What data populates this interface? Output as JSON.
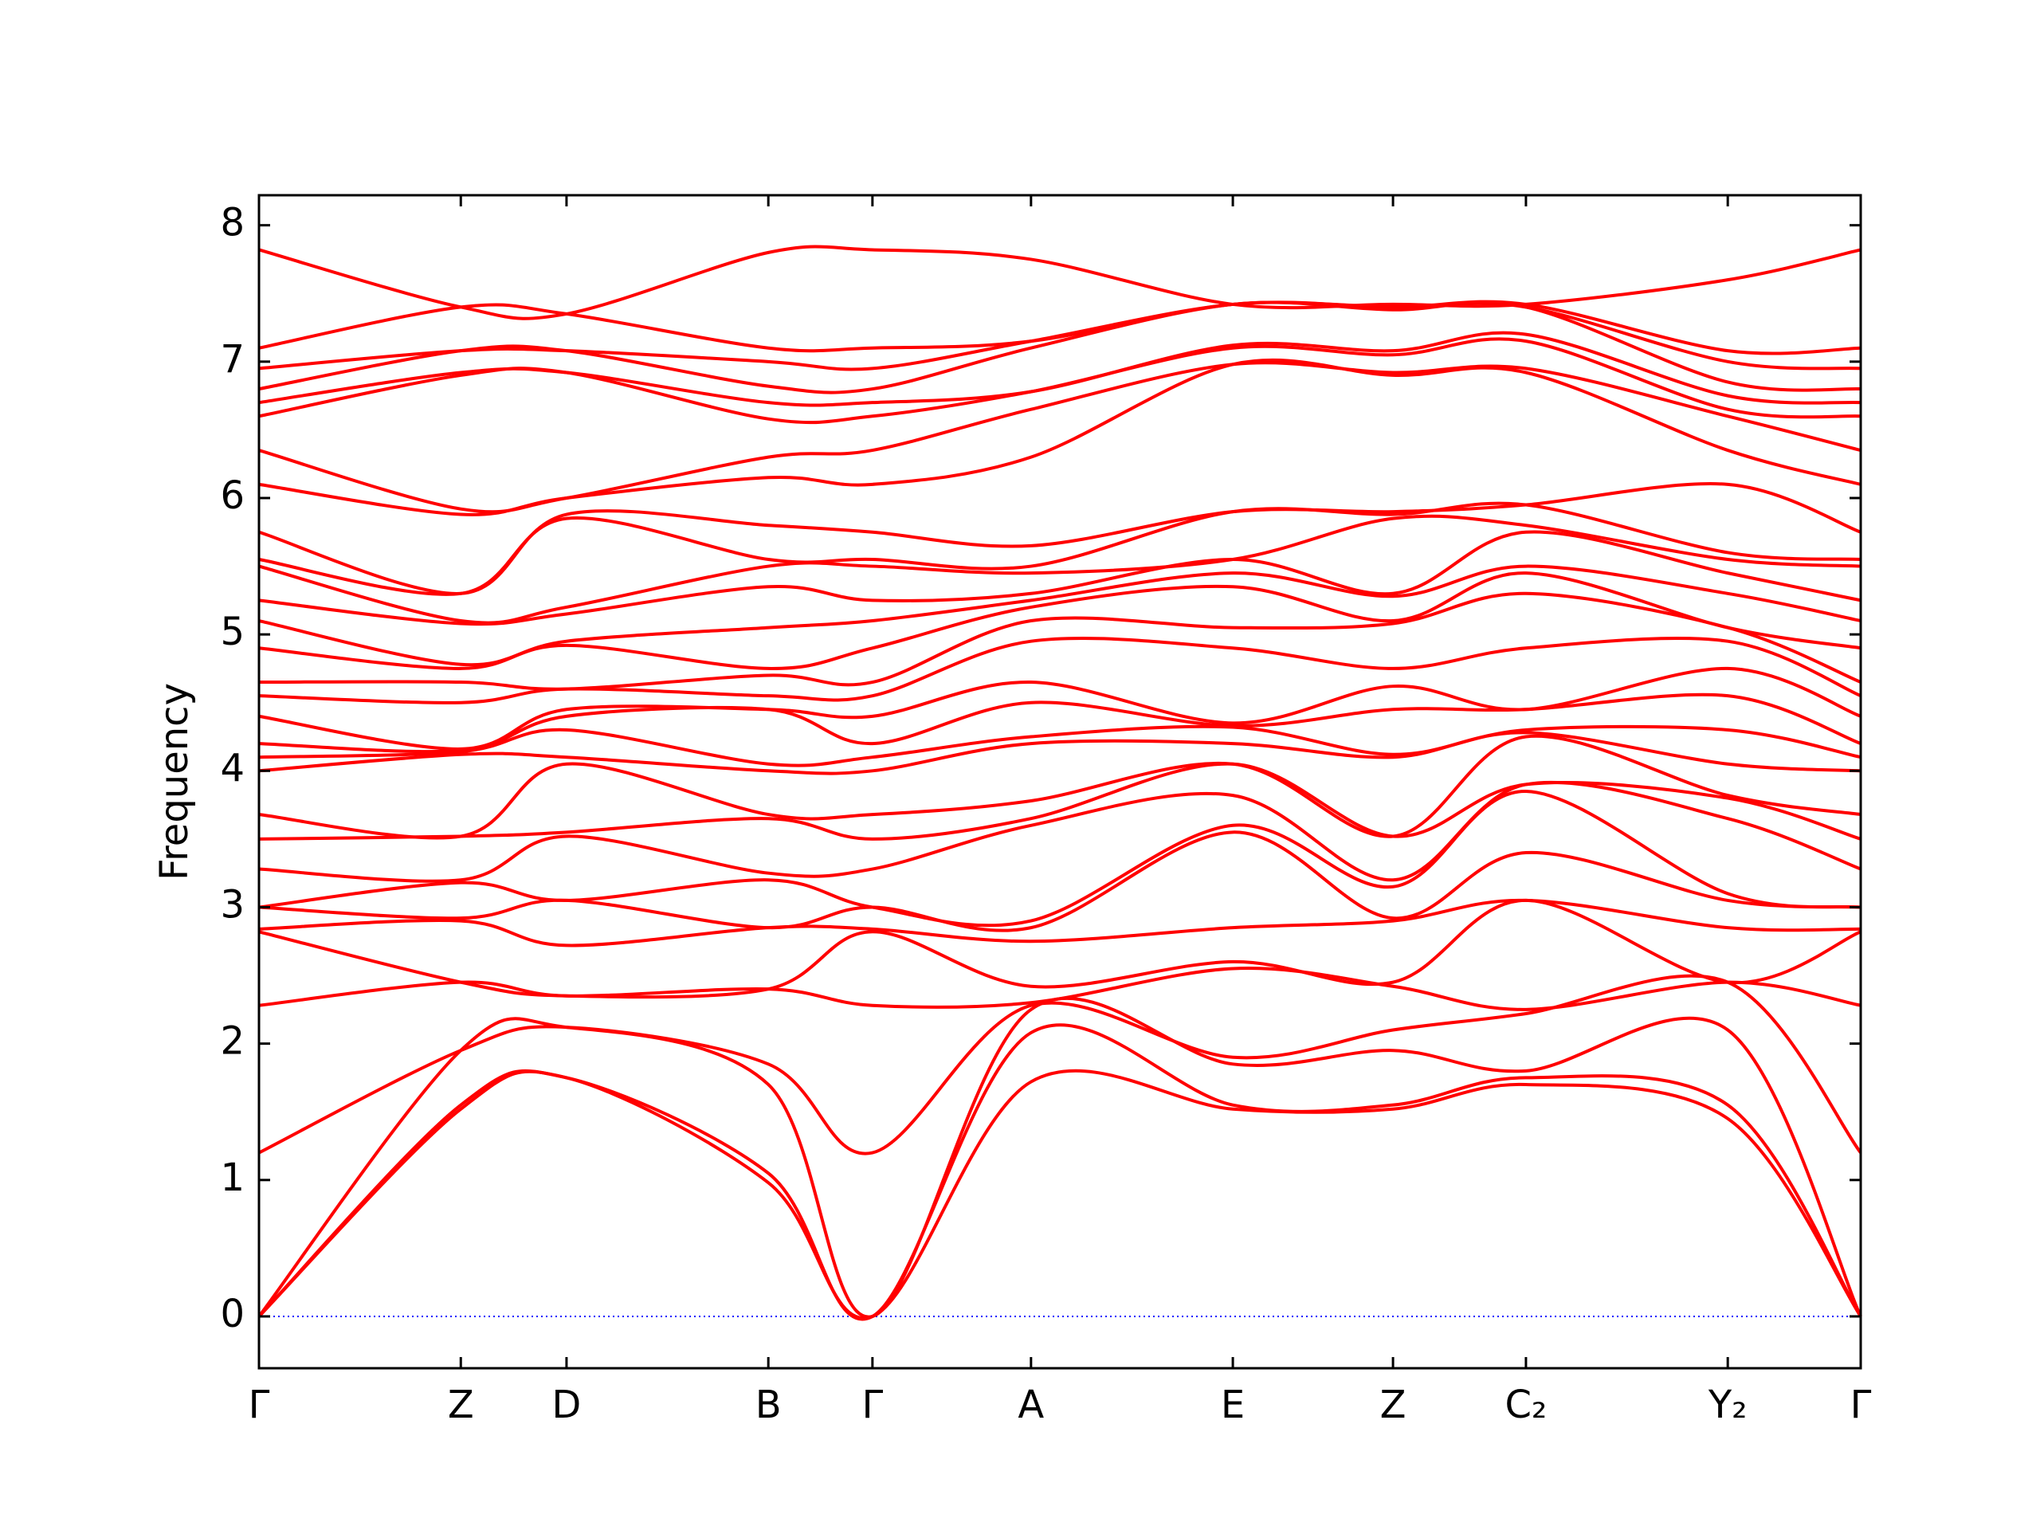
{
  "chart_data": {
    "type": "line",
    "ylabel": "Frequency",
    "color": "#ff0000",
    "x": [
      0,
      0.126,
      0.192,
      0.318,
      0.383,
      0.482,
      0.608,
      0.708,
      0.791,
      0.917,
      1
    ],
    "xlim": [
      0,
      1
    ],
    "xticks": [
      {
        "value": 0,
        "label": "Γ"
      },
      {
        "value": 0.126,
        "label": "Z"
      },
      {
        "value": 0.192,
        "label": "D"
      },
      {
        "value": 0.318,
        "label": "B"
      },
      {
        "value": 0.383,
        "label": "Γ"
      },
      {
        "value": 0.482,
        "label": "A"
      },
      {
        "value": 0.608,
        "label": "E"
      },
      {
        "value": 0.708,
        "label": "Z"
      },
      {
        "value": 0.791,
        "label": "C₂"
      },
      {
        "value": 0.917,
        "label": "Y₂"
      },
      {
        "value": 1,
        "label": "Γ"
      }
    ],
    "ylim": [
      -0.38,
      8.22
    ],
    "yticks": [
      0,
      1,
      2,
      3,
      4,
      5,
      6,
      7,
      8
    ],
    "zero_line": {
      "value": 0,
      "color": "#0000ff"
    },
    "series": [
      {
        "values": [
          0,
          1.52,
          1.75,
          0.98,
          0,
          1.72,
          1.52,
          1.52,
          1.7,
          1.45,
          0
        ]
      },
      {
        "values": [
          0,
          1.55,
          1.75,
          1.05,
          0,
          2.08,
          1.55,
          1.55,
          1.75,
          1.55,
          0
        ]
      },
      {
        "values": [
          0,
          1.95,
          2.12,
          1.7,
          0,
          2.25,
          1.85,
          1.95,
          1.8,
          2.1,
          0
        ]
      },
      {
        "values": [
          1.2,
          1.95,
          2.12,
          1.85,
          1.2,
          2.28,
          1.9,
          2.1,
          2.22,
          2.45,
          1.2
        ]
      },
      {
        "values": [
          2.28,
          2.45,
          2.35,
          2.4,
          2.28,
          2.3,
          2.55,
          2.42,
          2.25,
          2.45,
          2.28
        ]
      },
      {
        "values": [
          2.82,
          2.45,
          2.35,
          2.4,
          2.82,
          2.42,
          2.6,
          2.45,
          3.05,
          2.45,
          2.82
        ]
      },
      {
        "values": [
          2.84,
          2.9,
          2.72,
          2.85,
          2.84,
          2.75,
          2.85,
          2.9,
          3.05,
          2.85,
          2.84
        ]
      },
      {
        "values": [
          3.0,
          2.92,
          3.05,
          2.85,
          3.0,
          2.85,
          3.55,
          2.92,
          3.4,
          3.05,
          3.0
        ]
      },
      {
        "values": [
          3.0,
          3.18,
          3.05,
          3.2,
          3.0,
          2.9,
          3.6,
          3.15,
          3.85,
          3.1,
          3.0
        ]
      },
      {
        "values": [
          3.28,
          3.2,
          3.52,
          3.25,
          3.28,
          3.6,
          3.82,
          3.2,
          3.9,
          3.65,
          3.28
        ]
      },
      {
        "values": [
          3.5,
          3.52,
          3.55,
          3.65,
          3.5,
          3.65,
          4.05,
          3.52,
          3.9,
          3.8,
          3.5
        ]
      },
      {
        "values": [
          3.68,
          3.52,
          4.05,
          3.68,
          3.68,
          3.78,
          4.05,
          3.52,
          4.25,
          3.82,
          3.68
        ]
      },
      {
        "values": [
          4.0,
          4.12,
          4.1,
          4.0,
          4.0,
          4.2,
          4.2,
          4.1,
          4.28,
          4.05,
          4.0
        ]
      },
      {
        "values": [
          4.1,
          4.14,
          4.3,
          4.05,
          4.1,
          4.25,
          4.32,
          4.12,
          4.3,
          4.3,
          4.1
        ]
      },
      {
        "values": [
          4.2,
          4.15,
          4.4,
          4.45,
          4.2,
          4.5,
          4.33,
          4.45,
          4.45,
          4.55,
          4.2
        ]
      },
      {
        "values": [
          4.4,
          4.16,
          4.45,
          4.45,
          4.4,
          4.65,
          4.35,
          4.62,
          4.45,
          4.75,
          4.4
        ]
      },
      {
        "values": [
          4.55,
          4.5,
          4.6,
          4.55,
          4.55,
          4.95,
          4.9,
          4.75,
          4.9,
          4.95,
          4.55
        ]
      },
      {
        "values": [
          4.65,
          4.65,
          4.6,
          4.7,
          4.65,
          5.1,
          5.05,
          5.08,
          5.3,
          5.05,
          4.65
        ]
      },
      {
        "values": [
          4.9,
          4.75,
          4.92,
          4.75,
          4.9,
          5.2,
          5.35,
          5.1,
          5.45,
          5.05,
          4.9
        ]
      },
      {
        "values": [
          5.1,
          4.78,
          4.95,
          5.05,
          5.1,
          5.25,
          5.45,
          5.28,
          5.5,
          5.3,
          5.1
        ]
      },
      {
        "values": [
          5.25,
          5.08,
          5.15,
          5.35,
          5.25,
          5.3,
          5.55,
          5.3,
          5.75,
          5.45,
          5.25
        ]
      },
      {
        "values": [
          5.5,
          5.1,
          5.2,
          5.5,
          5.5,
          5.45,
          5.55,
          5.85,
          5.8,
          5.55,
          5.5
        ]
      },
      {
        "values": [
          5.55,
          5.3,
          5.85,
          5.55,
          5.55,
          5.5,
          5.9,
          5.88,
          5.95,
          5.6,
          5.55
        ]
      },
      {
        "values": [
          5.75,
          5.3,
          5.88,
          5.8,
          5.75,
          5.65,
          5.9,
          5.9,
          5.95,
          6.1,
          5.75
        ]
      },
      {
        "values": [
          6.1,
          5.88,
          6.0,
          6.15,
          6.1,
          6.3,
          6.98,
          6.9,
          6.92,
          6.35,
          6.1
        ]
      },
      {
        "values": [
          6.35,
          5.92,
          6.0,
          6.3,
          6.35,
          6.65,
          6.98,
          6.92,
          6.95,
          6.6,
          6.35
        ]
      },
      {
        "values": [
          6.6,
          6.9,
          6.92,
          6.58,
          6.6,
          6.78,
          7.1,
          7.05,
          7.15,
          6.65,
          6.6
        ]
      },
      {
        "values": [
          6.7,
          6.92,
          6.92,
          6.7,
          6.7,
          6.78,
          7.12,
          7.08,
          7.2,
          6.75,
          6.7
        ]
      },
      {
        "values": [
          6.8,
          7.08,
          7.08,
          6.82,
          6.8,
          7.1,
          7.42,
          7.38,
          7.4,
          6.85,
          6.8
        ]
      },
      {
        "values": [
          6.95,
          7.08,
          7.08,
          7.0,
          6.95,
          7.15,
          7.42,
          7.4,
          7.4,
          7.0,
          6.95
        ]
      },
      {
        "values": [
          7.1,
          7.4,
          7.35,
          7.1,
          7.1,
          7.15,
          7.42,
          7.4,
          7.42,
          7.08,
          7.1
        ]
      },
      {
        "values": [
          7.82,
          7.4,
          7.35,
          7.8,
          7.82,
          7.75,
          7.42,
          7.42,
          7.42,
          7.6,
          7.82
        ]
      }
    ]
  }
}
